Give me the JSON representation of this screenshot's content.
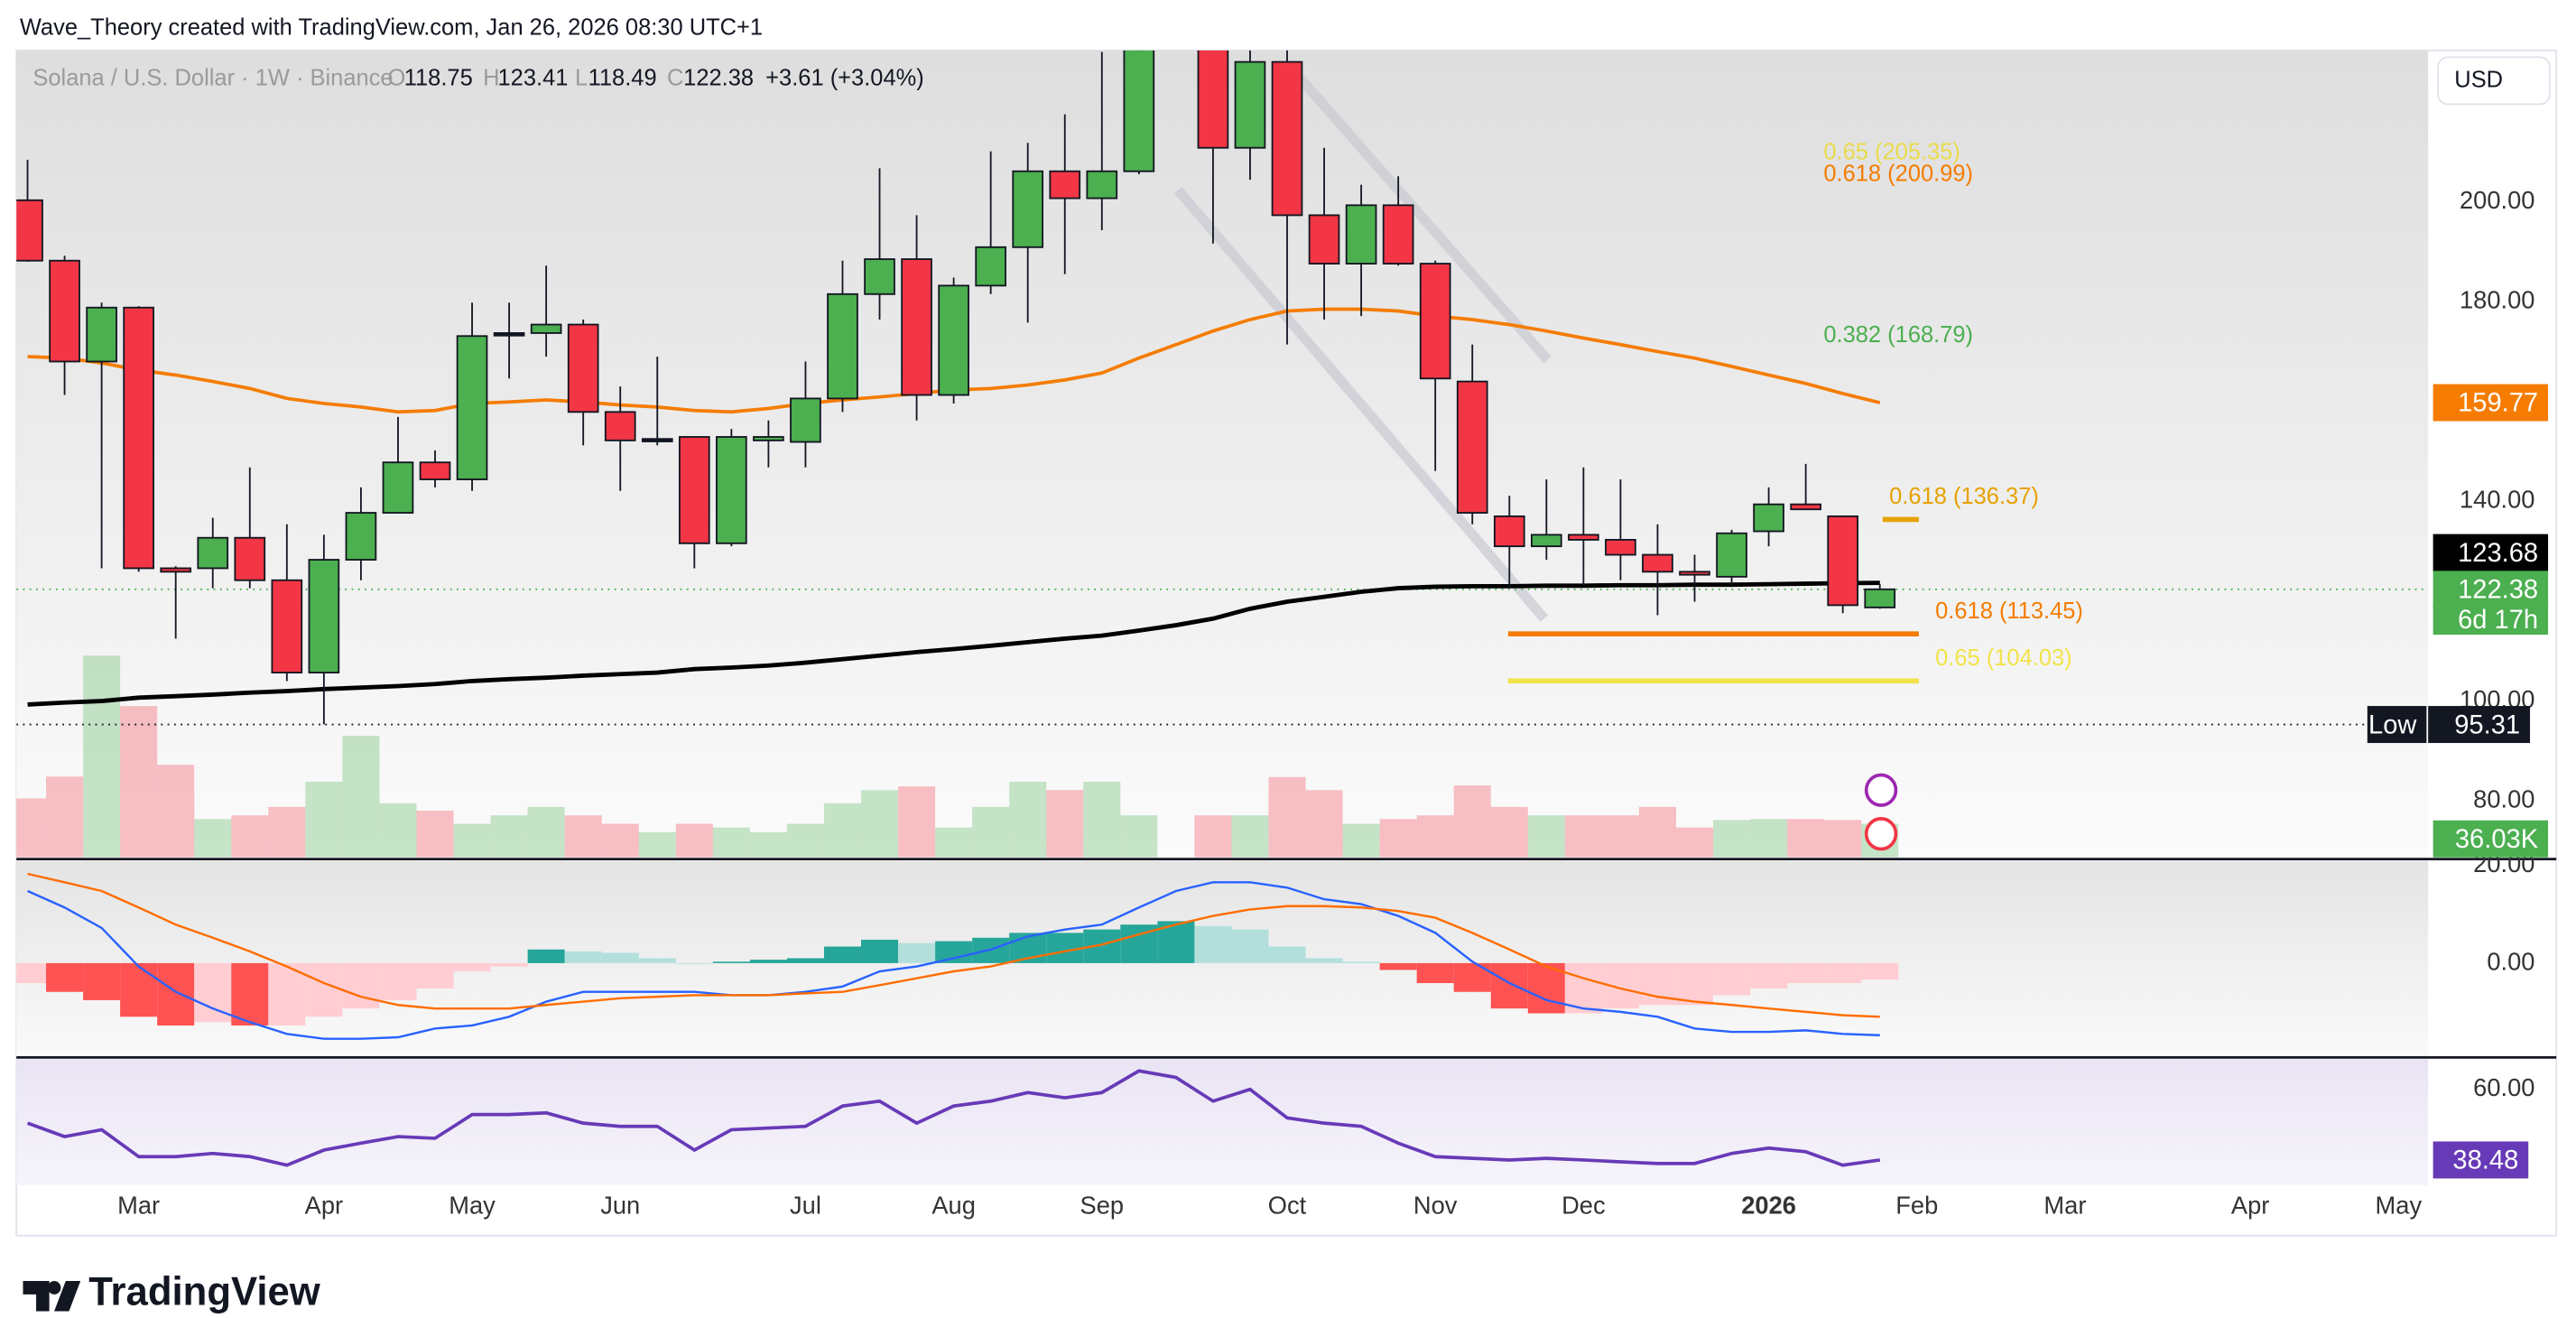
{
  "header": {
    "title": "Wave_Theory created with TradingView.com, Jan 26, 2026 08:30 UTC+1"
  },
  "currency_button": "USD",
  "logo_text": "TradingView",
  "chart_data": {
    "type": "candlestick",
    "title": "Solana / U.S. Dollar · 1W · Binance",
    "ohlc_labels": [
      "O",
      "H",
      "L",
      "C"
    ],
    "change_text": "+3.61 (+3.04%)",
    "xlim": [
      -0.3,
      64.8
    ],
    "xticks": [
      {
        "value": 3,
        "label": "Mar"
      },
      {
        "value": 8,
        "label": "Apr"
      },
      {
        "value": 12,
        "label": "May"
      },
      {
        "value": 16,
        "label": "Jun"
      },
      {
        "value": 21,
        "label": "Jul"
      },
      {
        "value": 25,
        "label": "Aug"
      },
      {
        "value": 29,
        "label": "Sep"
      },
      {
        "value": 34,
        "label": "Oct"
      },
      {
        "value": 38,
        "label": "Nov"
      },
      {
        "value": 42,
        "label": "Dec"
      },
      {
        "value": 47,
        "label": "2026",
        "bold": true
      },
      {
        "value": 51,
        "label": "Feb"
      },
      {
        "value": 55,
        "label": "Mar"
      },
      {
        "value": 60,
        "label": "Apr"
      },
      {
        "value": 64,
        "label": "May"
      }
    ],
    "ylim": [
      68.7,
      230.3
    ],
    "yticks": [
      {
        "value": 200,
        "label": "200.00"
      },
      {
        "value": 180,
        "label": "180.00"
      },
      {
        "value": 140,
        "label": "140.00"
      },
      {
        "value": 100,
        "label": "100.00"
      },
      {
        "value": 80,
        "label": "80.00"
      }
    ],
    "up_color": "#4caf50",
    "down_color": "#f23645",
    "open": [
      200.3,
      188.2,
      168.0,
      178.8,
      126.6,
      126.6,
      132.7,
      124.2,
      105.7,
      128.3,
      137.7,
      147.8,
      144.4,
      173.7,
      173.7,
      175.4,
      157.9,
      152.5,
      152.9,
      131.6,
      152.2,
      151.9,
      160.6,
      181.5,
      188.5,
      161.3,
      183.2,
      190.9,
      206.1,
      200.7,
      206.1,
      null,
      232.0,
      210.8,
      228.0,
      197.3,
      187.6,
      199.3,
      187.6,
      164.0,
      137.0,
      131.0,
      133.3,
      132.3,
      129.3,
      125.9,
      124.9,
      134.0,
      139.4,
      137.0,
      118.75
    ],
    "high": [
      208.4,
      189.2,
      179.8,
      179.1,
      127.0,
      136.7,
      146.8,
      135.4,
      133.3,
      142.8,
      156.9,
      150.2,
      179.8,
      179.8,
      187.2,
      176.4,
      163.0,
      169.0,
      152.9,
      154.5,
      156.2,
      168.0,
      188.2,
      206.7,
      197.3,
      184.8,
      210.1,
      211.8,
      217.5,
      230.0,
      236.0,
      null,
      238.0,
      232.0,
      233.0,
      210.8,
      203.4,
      205.1,
      188.2,
      171.4,
      141.1,
      144.4,
      146.8,
      144.4,
      135.4,
      129.3,
      134.3,
      142.8,
      147.5,
      137.0,
      123.41
    ],
    "low": [
      188.0,
      161.3,
      126.6,
      125.9,
      112.5,
      122.6,
      122.6,
      104.0,
      95.31,
      124.2,
      137.7,
      142.8,
      142.1,
      164.6,
      169.0,
      151.2,
      142.1,
      151.2,
      126.6,
      131.0,
      146.8,
      146.8,
      157.9,
      176.4,
      156.2,
      159.6,
      181.5,
      175.8,
      185.5,
      194.3,
      205.5,
      null,
      191.6,
      204.4,
      171.4,
      176.4,
      177.1,
      187.2,
      146.1,
      135.4,
      122.6,
      128.3,
      123.2,
      124.2,
      117.2,
      119.9,
      123.2,
      131.0,
      138.4,
      117.6,
      118.49
    ],
    "close": [
      188.2,
      168.0,
      178.8,
      126.6,
      125.9,
      132.7,
      124.2,
      105.7,
      128.3,
      137.7,
      147.8,
      144.4,
      173.1,
      173.7,
      175.4,
      157.9,
      152.2,
      152.5,
      131.6,
      152.9,
      152.9,
      160.6,
      181.5,
      188.5,
      161.3,
      183.2,
      190.9,
      206.1,
      200.7,
      206.1,
      231.0,
      null,
      210.8,
      228.0,
      197.3,
      187.6,
      199.3,
      187.6,
      164.6,
      137.7,
      131.0,
      133.3,
      132.3,
      129.3,
      125.9,
      125.3,
      133.6,
      139.4,
      138.4,
      119.2,
      122.38
    ],
    "countdown": "6d 17h",
    "overlays": [
      {
        "color": "#f57c00",
        "values": [
          169.0,
          168.7,
          167.7,
          166.3,
          165.3,
          164.0,
          162.6,
          160.6,
          159.6,
          158.9,
          157.9,
          158.2,
          159.6,
          159.9,
          160.3,
          159.9,
          159.3,
          158.9,
          158.2,
          157.9,
          158.6,
          159.6,
          160.3,
          160.9,
          161.6,
          162.3,
          162.6,
          163.3,
          164.3,
          165.7,
          168.7,
          171.4,
          174.1,
          176.4,
          178.1,
          178.5,
          178.5,
          178.1,
          177.1,
          176.4,
          175.4,
          174.1,
          172.7,
          171.4,
          170.0,
          168.7,
          167.0,
          165.3,
          163.6,
          161.6,
          159.77
        ]
      },
      {
        "color": "#000000",
        "values": [
          99.3,
          99.7,
          100.0,
          100.7,
          101.0,
          101.3,
          101.7,
          102.0,
          102.4,
          102.7,
          103.0,
          103.4,
          104.0,
          104.4,
          104.7,
          105.1,
          105.4,
          105.7,
          106.4,
          106.7,
          107.1,
          107.7,
          108.4,
          109.1,
          109.8,
          110.4,
          111.1,
          111.8,
          112.5,
          113.1,
          114.1,
          115.2,
          116.5,
          118.5,
          119.9,
          120.9,
          121.9,
          122.6,
          122.9,
          123.0,
          123.0,
          123.1,
          123.1,
          123.2,
          123.2,
          123.3,
          123.3,
          123.4,
          123.5,
          123.6,
          123.68
        ]
      }
    ],
    "low_marker": {
      "label": "Low",
      "value": 95.31
    },
    "fib_levels": [
      {
        "label": "0.65 (205.35)",
        "value": 205.35,
        "color": "#eadb4c",
        "line": "none"
      },
      {
        "label": "0.618 (200.99)",
        "value": 200.99,
        "color": "#f57c00",
        "line": "none"
      },
      {
        "label": "0.382 (168.79)",
        "value": 168.79,
        "color": "#4caf50",
        "line": "none"
      },
      {
        "label": "0.618 (136.37)",
        "value": 136.37,
        "color": "#e6a100",
        "line": "short"
      },
      {
        "label": "0.618 (113.45)",
        "value": 113.45,
        "color": "#f57c00",
        "line": "long"
      },
      {
        "label": "0.65 (104.03)",
        "value": 104.03,
        "color": "#f2e34a",
        "line": "long"
      }
    ],
    "volume": {
      "ylim": [
        0,
        234
      ],
      "last_label": "36.03K",
      "values": [
        63.1,
        86.5,
        216,
        162,
        99,
        41,
        45,
        54,
        81,
        130,
        58,
        50,
        36,
        45,
        54,
        45,
        36,
        27,
        36,
        32,
        27,
        36,
        58,
        72,
        76,
        32,
        54,
        81,
        72,
        81,
        45,
        null,
        45,
        45,
        86,
        72,
        36,
        41,
        45,
        77,
        54,
        45,
        45,
        45,
        54,
        32,
        40,
        41,
        41,
        40,
        36.03
      ]
    },
    "macd": {
      "ylim": [
        -19,
        21
      ],
      "yticks": [
        {
          "value": 20,
          "label": "20.00"
        },
        {
          "value": 0,
          "label": "0.00"
        }
      ],
      "histogram": [
        -4.1,
        -5.9,
        -7.6,
        -11.0,
        -12.8,
        -12.1,
        -12.8,
        -12.8,
        -11.0,
        -9.3,
        -7.6,
        -5.2,
        -1.7,
        -0.7,
        2.8,
        2.4,
        2.1,
        1.0,
        0.0,
        0.3,
        0.7,
        1.0,
        3.4,
        4.8,
        4.1,
        4.5,
        5.2,
        6.2,
        6.2,
        6.9,
        7.9,
        8.6,
        7.6,
        6.9,
        3.4,
        1.0,
        0.3,
        -1.4,
        -4.1,
        -5.9,
        -9.3,
        -10.3,
        -10.3,
        -9.3,
        -8.6,
        -8.6,
        -6.6,
        -5.2,
        -4.1,
        -4.1,
        -3.4
      ],
      "macd_color": "#2962ff",
      "macd": [
        14.8,
        11.4,
        7.2,
        -0.7,
        -5.9,
        -9.3,
        -12.1,
        -14.5,
        -15.5,
        -15.5,
        -15.2,
        -13.4,
        -12.8,
        -11.0,
        -7.9,
        -5.9,
        -5.9,
        -5.9,
        -5.9,
        -6.6,
        -6.6,
        -5.9,
        -4.8,
        -1.7,
        -0.7,
        1.0,
        2.8,
        5.5,
        6.9,
        7.9,
        11.4,
        14.8,
        16.6,
        16.6,
        15.5,
        13.1,
        12.1,
        9.7,
        6.2,
        0.3,
        -4.1,
        -7.6,
        -9.3,
        -10.0,
        -11.0,
        -13.4,
        -14.1,
        -14.1,
        -13.8,
        -14.5,
        -14.8
      ],
      "signal_color": "#ff6d00",
      "signal": [
        18.3,
        16.6,
        14.8,
        11.4,
        7.9,
        5.2,
        2.4,
        -0.7,
        -4.1,
        -6.9,
        -8.6,
        -9.3,
        -9.3,
        -9.3,
        -8.6,
        -7.9,
        -7.2,
        -6.9,
        -6.6,
        -6.6,
        -6.6,
        -6.2,
        -5.9,
        -4.5,
        -3.1,
        -1.7,
        -0.7,
        1.0,
        2.4,
        3.8,
        5.9,
        7.9,
        9.7,
        11.0,
        11.7,
        11.7,
        11.4,
        10.7,
        9.3,
        6.2,
        2.8,
        -0.7,
        -3.1,
        -5.2,
        -6.9,
        -7.9,
        -8.6,
        -9.3,
        -10.0,
        -10.7,
        -11.0
      ]
    },
    "rsi": {
      "ylim": [
        30.8,
        69.2
      ],
      "yticks": [
        {
          "value": 60,
          "label": "60.00"
        }
      ],
      "color": "#673ab7",
      "values": [
        49.7,
        45.6,
        47.7,
        39.5,
        39.5,
        40.5,
        39.5,
        36.9,
        41.5,
        43.6,
        45.6,
        45.1,
        52.3,
        52.3,
        52.8,
        49.7,
        48.7,
        48.7,
        41.5,
        47.7,
        48.2,
        48.7,
        54.9,
        56.4,
        49.7,
        54.9,
        56.4,
        59.0,
        57.4,
        59.0,
        65.6,
        63.6,
        56.4,
        60,
        51.3,
        49.7,
        48.7,
        43.6,
        39.5,
        39.0,
        38.5,
        39.0,
        38.5,
        37.9,
        37.4,
        37.4,
        40.5,
        42.1,
        41.0,
        36.9,
        38.48
      ]
    }
  }
}
